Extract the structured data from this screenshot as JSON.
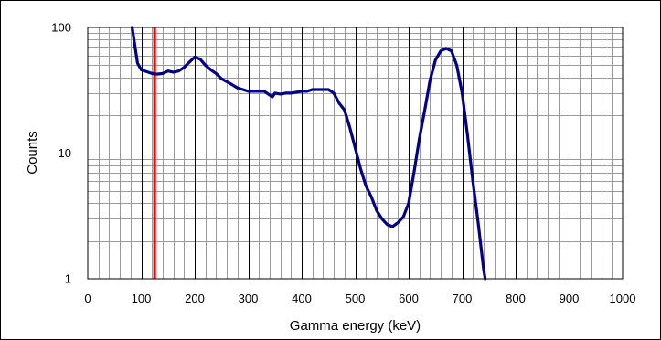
{
  "chart_data": {
    "type": "line",
    "title": "",
    "xlabel": "Gamma energy (keV)",
    "ylabel": "Counts",
    "xlim": [
      0,
      1000
    ],
    "ylim": [
      1,
      100
    ],
    "y_scale": "log",
    "grid": true,
    "x_ticks": [
      "0",
      "100",
      "200",
      "300",
      "400",
      "500",
      "600",
      "700",
      "800",
      "900",
      "1000"
    ],
    "y_ticks": [
      "1",
      "10",
      "100"
    ],
    "marker_line": {
      "x": 125,
      "color": "#ff0000"
    },
    "series": [
      {
        "color": "#00008b",
        "x": [
          83,
          88,
          93,
          100,
          110,
          120,
          130,
          140,
          150,
          160,
          170,
          180,
          190,
          200,
          210,
          220,
          230,
          240,
          250,
          260,
          270,
          280,
          290,
          300,
          310,
          320,
          330,
          340,
          345,
          350,
          360,
          370,
          380,
          390,
          400,
          410,
          420,
          430,
          440,
          450,
          460,
          470,
          480,
          490,
          500,
          510,
          520,
          530,
          540,
          550,
          560,
          570,
          580,
          590,
          600,
          610,
          620,
          630,
          640,
          650,
          660,
          670,
          680,
          690,
          700,
          710,
          720,
          730,
          740,
          743
        ],
        "y": [
          100,
          72,
          52,
          46,
          44.5,
          43,
          42.5,
          43,
          45,
          44,
          45,
          48,
          53,
          58,
          56,
          50,
          46,
          43,
          39,
          37,
          35,
          33,
          32,
          31,
          31,
          31,
          31,
          29,
          28,
          30,
          29.5,
          30,
          30,
          30.5,
          31,
          31,
          32,
          32,
          32,
          32,
          30,
          25,
          22,
          16,
          11,
          7.5,
          5.5,
          4.5,
          3.5,
          3,
          2.7,
          2.6,
          2.8,
          3.1,
          4,
          7,
          13,
          22,
          38,
          55,
          65,
          68,
          65,
          50,
          30,
          14,
          6,
          2.8,
          1.2,
          1
        ]
      }
    ]
  }
}
